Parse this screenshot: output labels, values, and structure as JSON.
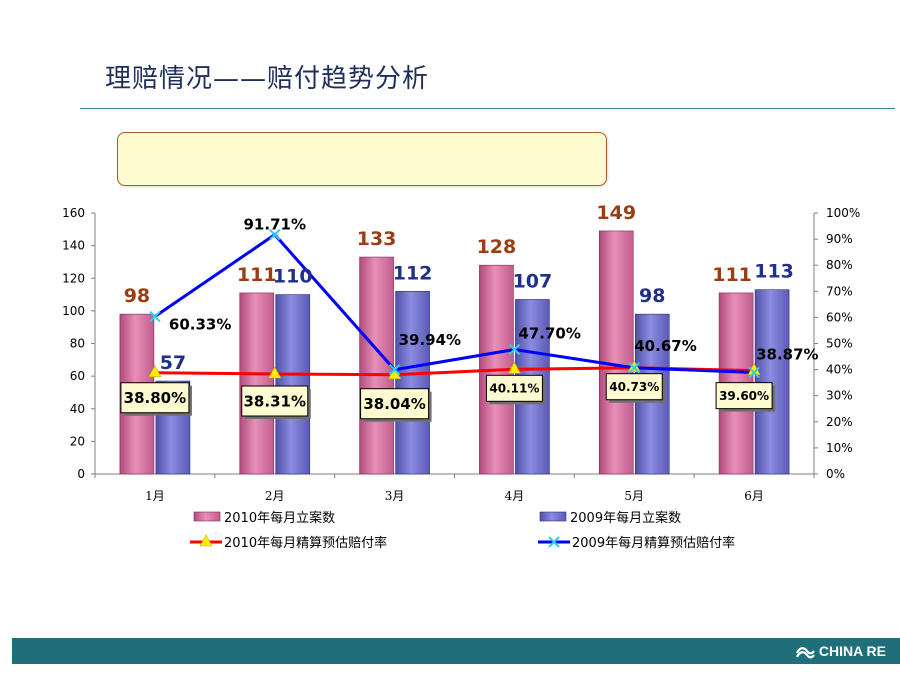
{
  "page": {
    "title": "理赔情况——赔付趋势分析",
    "logo_text": "CHINA RE"
  },
  "colors": {
    "bar2010": "#e890b8",
    "bar2009": "#8c8ce0",
    "line2010": "#ff0000",
    "line2009": "#0000ff",
    "marker2010": "#ffee00",
    "marker2009": "#33ccee",
    "label2010": "#9a3d12",
    "label2009": "#1f2f8a",
    "footer": "#1e6f7a"
  },
  "chart_data": {
    "type": "bar",
    "categories": [
      "1月",
      "2月",
      "3月",
      "4月",
      "5月",
      "6月"
    ],
    "y_left": {
      "min": 0,
      "max": 160,
      "ticks": [
        "0",
        "20",
        "40",
        "60",
        "80",
        "100",
        "120",
        "140",
        "160"
      ]
    },
    "y_right": {
      "min": 0,
      "max": 100,
      "ticks": [
        "0%",
        "10%",
        "20%",
        "30%",
        "40%",
        "50%",
        "60%",
        "70%",
        "80%",
        "90%",
        "100%"
      ]
    },
    "series": [
      {
        "name": "2010年每月立案数",
        "kind": "bar",
        "axis": "left",
        "values": [
          98,
          111,
          133,
          128,
          149,
          111
        ],
        "labels": [
          "98",
          "111",
          "133",
          "128",
          "149",
          "111"
        ]
      },
      {
        "name": "2009年每月立案数",
        "kind": "bar",
        "axis": "left",
        "values": [
          57,
          110,
          112,
          107,
          98,
          113
        ],
        "labels": [
          "57",
          "110",
          "112",
          "107",
          "98",
          "113"
        ]
      },
      {
        "name": "2010年每月精算预估赔付率",
        "kind": "line",
        "axis": "right",
        "values": [
          38.8,
          38.31,
          38.04,
          40.11,
          40.73,
          39.6
        ],
        "labels": [
          "38.80%",
          "38.31%",
          "38.04%",
          "40.11%",
          "40.73%",
          "39.60%"
        ]
      },
      {
        "name": "2009年每月精算预估赔付率",
        "kind": "line",
        "axis": "right",
        "values": [
          60.33,
          91.71,
          39.94,
          47.7,
          40.67,
          38.87
        ],
        "labels": [
          "60.33%",
          "91.71%",
          "39.94%",
          "47.70%",
          "40.67%",
          "38.87%"
        ]
      }
    ],
    "grid": false,
    "legend_position": "bottom"
  }
}
